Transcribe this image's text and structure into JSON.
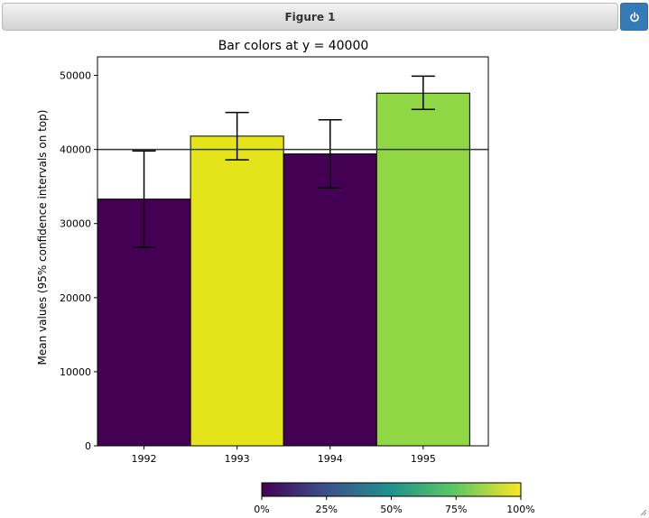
{
  "window": {
    "title": "Figure 1",
    "power_icon": "power-icon"
  },
  "colors": {
    "titlebar_text": "#333333",
    "power_button": "#337ab7",
    "threshold_line": "#333333"
  },
  "chart_data": {
    "type": "bar",
    "title": "Bar colors at y = 40000",
    "xlabel": "",
    "ylabel": "Mean values (95% confidence intervals on top)",
    "categories": [
      "1992",
      "1993",
      "1994",
      "1995"
    ],
    "values": [
      33300,
      41800,
      39400,
      47600
    ],
    "ci_low": [
      26800,
      38600,
      34800,
      45400
    ],
    "ci_high": [
      39800,
      45000,
      44000,
      49900
    ],
    "bar_colors": [
      "#440154",
      "#e3e419",
      "#440154",
      "#8fd744"
    ],
    "threshold_y": 40000,
    "ylim": [
      0,
      52500
    ],
    "yticks": [
      0,
      10000,
      20000,
      30000,
      40000,
      50000
    ],
    "ytick_labels": [
      "0",
      "10000",
      "20000",
      "30000",
      "40000",
      "50000"
    ],
    "xlim": [
      1991.5,
      1995.7
    ],
    "grid": false,
    "colorbar": {
      "orientation": "horizontal",
      "colormap": "viridis",
      "stops": [
        "#440154",
        "#3b528b",
        "#21918c",
        "#5ec962",
        "#fde725"
      ],
      "tick_labels": [
        "0%",
        "25%",
        "50%",
        "75%",
        "100%"
      ],
      "tick_values": [
        0,
        0.25,
        0.5,
        0.75,
        1.0
      ]
    }
  }
}
